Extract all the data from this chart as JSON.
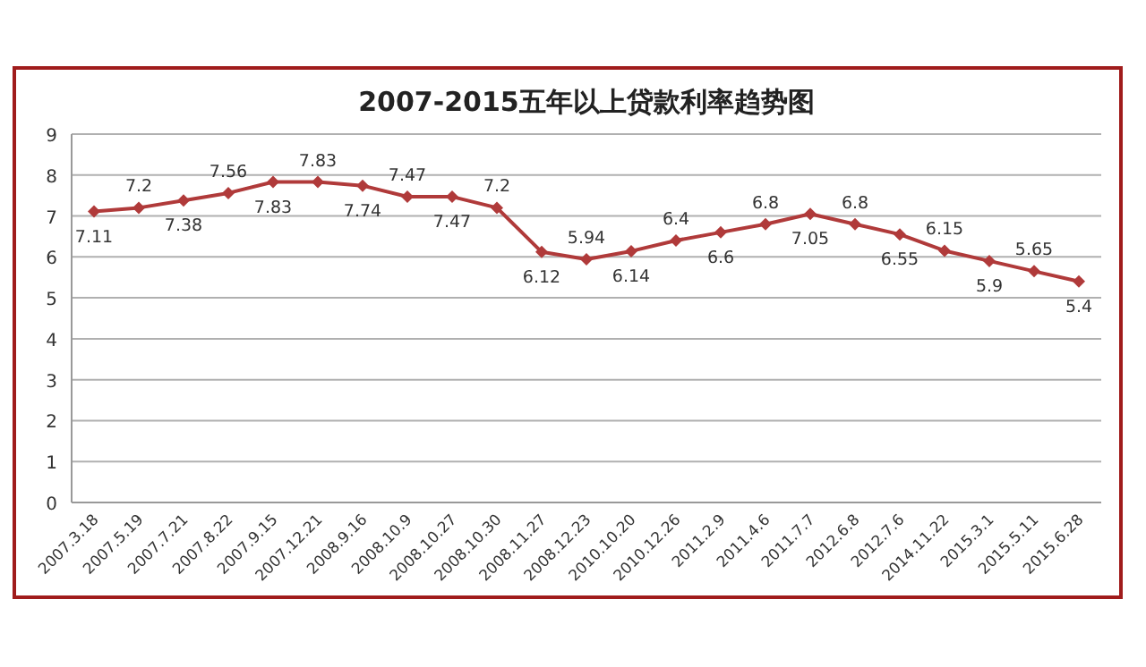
{
  "chart_data": {
    "type": "line",
    "title": "2007-2015五年以上贷款利率趋势图",
    "categories": [
      "2007.3.18",
      "2007.5.19",
      "2007.7.21",
      "2007.8.22",
      "2007.9.15",
      "2007.12.21",
      "2008.9.16",
      "2008.10.9",
      "2008.10.27",
      "2008.10.30",
      "2008.11.27",
      "2008.12.23",
      "2010.10.20",
      "2010.12.26",
      "2011.2.9",
      "2011.4.6",
      "2011.7.7",
      "2012.6.8",
      "2012.7.6",
      "2014.11.22",
      "2015.3.1",
      "2015.5.11",
      "2015.6.28"
    ],
    "series": [
      {
        "color": "#b03a3a",
        "values": [
          7.11,
          7.2,
          7.38,
          7.56,
          7.83,
          7.83,
          7.74,
          7.47,
          7.47,
          7.2,
          6.12,
          5.94,
          6.14,
          6.4,
          6.6,
          6.8,
          7.05,
          6.8,
          6.55,
          6.15,
          5.9,
          5.65,
          5.4
        ]
      }
    ],
    "ylim": [
      0,
      9
    ],
    "yticks": [
      0,
      1,
      2,
      3,
      4,
      5,
      6,
      7,
      8,
      9
    ],
    "grid": "y",
    "marker": "diamond",
    "line_style": "solid",
    "data_labels": true
  }
}
